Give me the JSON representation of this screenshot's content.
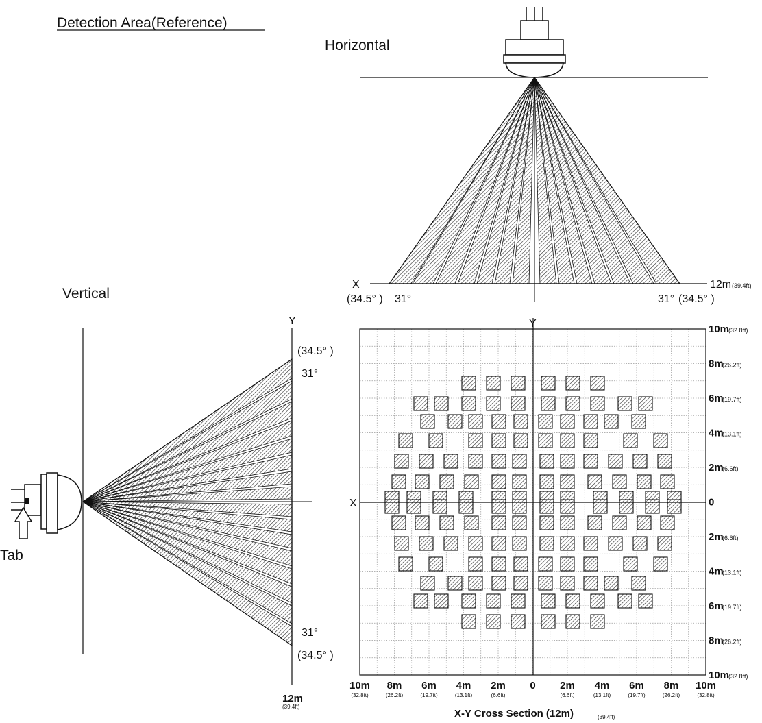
{
  "header": {
    "title": "Detection Area(Reference)",
    "horizontal_label": "Horizontal",
    "vertical_label": "Vertical"
  },
  "horizontal_view": {
    "range_label": "12m",
    "range_label_ft": "(39.4ft)",
    "x_label": "X",
    "angle_outer_left": "(34.5°  )",
    "angle_inner_left": "31°",
    "angle_inner_right": "31°",
    "angle_outer_right": "(34.5°  )"
  },
  "vertical_view": {
    "y_label": "Y",
    "angle_outer_top": "(34.5°  )",
    "angle_inner_top": "31°",
    "angle_inner_bottom": "31°",
    "angle_outer_bottom": "(34.5°  )",
    "range_label": "12m",
    "range_label_ft": "(39.4ft)",
    "tab_label": "Tab"
  },
  "cross_section": {
    "title": "X-Y Cross Section (12m)",
    "title_ft": "(39.4ft)",
    "x_label": "X",
    "y_label": "Y",
    "y_ticks": [
      {
        "m": "10m",
        "ft": "(32.8ft)"
      },
      {
        "m": "8m",
        "ft": "(26.2ft)"
      },
      {
        "m": "6m",
        "ft": "(19.7ft)"
      },
      {
        "m": "4m",
        "ft": "(13.1ft)"
      },
      {
        "m": "2m",
        "ft": "(6.6ft)"
      },
      {
        "m": "0",
        "ft": ""
      },
      {
        "m": "2m",
        "ft": "(6.6ft)"
      },
      {
        "m": "4m",
        "ft": "(13.1ft)"
      },
      {
        "m": "6m",
        "ft": "(19.7ft)"
      },
      {
        "m": "8m",
        "ft": "(26.2ft)"
      },
      {
        "m": "10m",
        "ft": "(32.8ft)"
      }
    ],
    "x_ticks": [
      {
        "m": "10m",
        "ft": "(32.8ft)"
      },
      {
        "m": "8m",
        "ft": "(26.2ft)"
      },
      {
        "m": "6m",
        "ft": "(19.7ft)"
      },
      {
        "m": "4m",
        "ft": "(13.1ft)"
      },
      {
        "m": "2m",
        "ft": "(6.6ft)"
      },
      {
        "m": "0",
        "ft": ""
      },
      {
        "m": "2m",
        "ft": "(6.6ft)"
      },
      {
        "m": "4m",
        "ft": "(13.1ft)"
      },
      {
        "m": "6m",
        "ft": "(19.7ft)"
      },
      {
        "m": "8m",
        "ft": "(26.2ft)"
      },
      {
        "m": "10m",
        "ft": "(32.8ft)"
      }
    ]
  }
}
